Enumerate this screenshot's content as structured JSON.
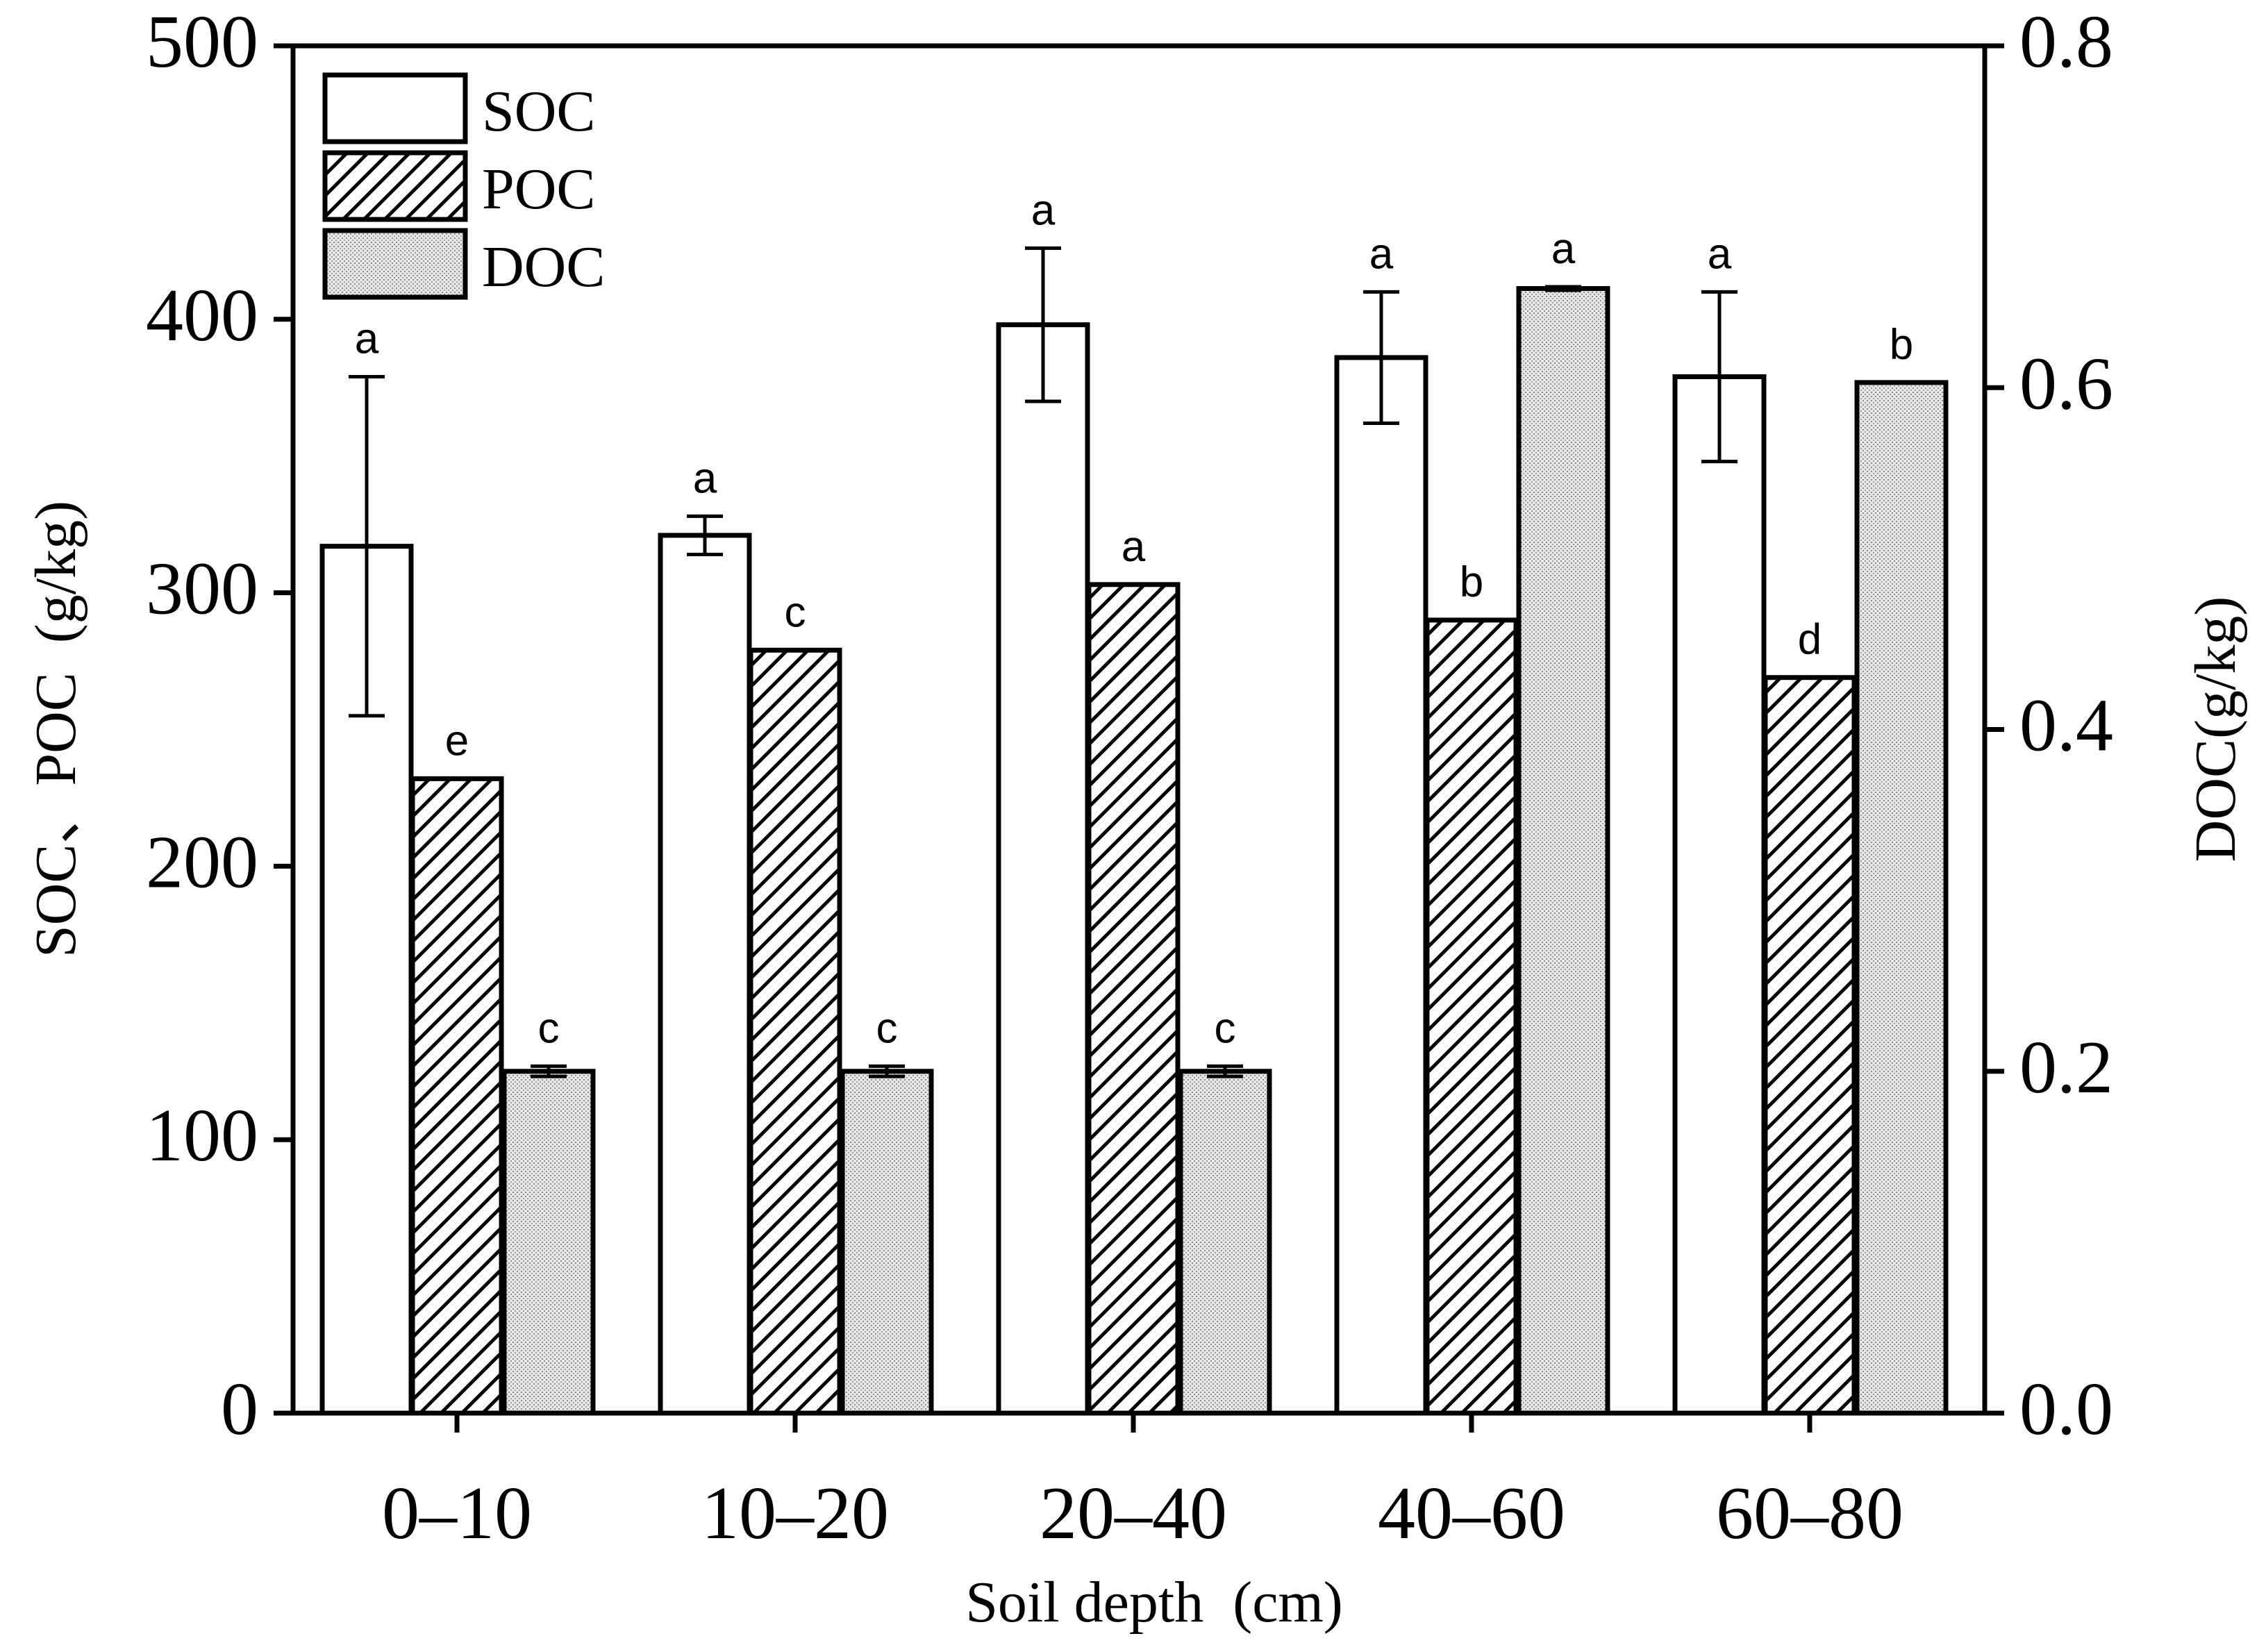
{
  "chart_data": {
    "type": "bar",
    "xlabel": "Soil depth  (cm)",
    "ylabel_left": "SOC、POC  (g/kg)",
    "ylabel_right": "DOC(g/kg)",
    "categories": [
      "0–10",
      "10–20",
      "20–40",
      "40–60",
      "60–80"
    ],
    "ylim_left": [
      0,
      500
    ],
    "ylim_right": [
      0,
      0.8
    ],
    "yticks_left": [
      "0",
      "100",
      "200",
      "300",
      "400",
      "500"
    ],
    "yticks_right": [
      "0.0",
      "0.2",
      "0.4",
      "0.6",
      "0.8"
    ],
    "legend": {
      "position": "top-left",
      "entries": [
        "SOC",
        "POC",
        "DOC"
      ]
    },
    "series": [
      {
        "name": "SOC",
        "axis": "left",
        "pattern": "white",
        "values": [
          317,
          321,
          398,
          386,
          379
        ],
        "errors": [
          62,
          7,
          28,
          24,
          31
        ],
        "letters": [
          "a",
          "a",
          "a",
          "a",
          "a"
        ]
      },
      {
        "name": "POC",
        "axis": "left",
        "pattern": "hatch",
        "values": [
          232,
          279,
          303,
          290,
          269
        ],
        "errors": [
          0,
          0,
          0,
          0,
          0
        ],
        "letters": [
          "e",
          "c",
          "a",
          "b",
          "d"
        ]
      },
      {
        "name": "DOC",
        "axis": "right",
        "pattern": "dots",
        "values": [
          0.2,
          0.2,
          0.2,
          0.658,
          0.603
        ],
        "errors": [
          0.003,
          0.003,
          0.003,
          0.001,
          0
        ],
        "letters": [
          "c",
          "c",
          "c",
          "a",
          "b"
        ]
      }
    ]
  }
}
